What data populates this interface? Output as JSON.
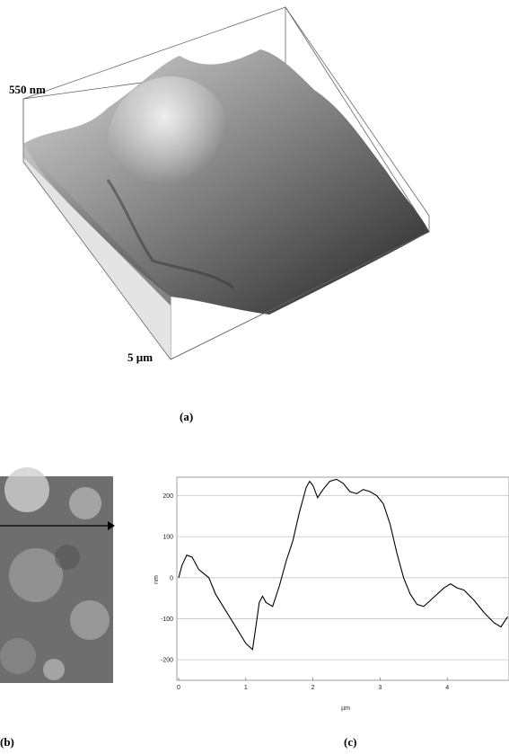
{
  "figure": {
    "height_label": "550 nm",
    "size_label": "5 µm",
    "panel_a": "(a)",
    "panel_b": "(b)",
    "panel_c": "(c)"
  },
  "chart_data": {
    "type": "line",
    "xlabel": "µm",
    "ylabel": "nm",
    "x": [
      0,
      0.05,
      0.12,
      0.2,
      0.3,
      0.45,
      0.55,
      0.7,
      0.85,
      1.0,
      1.1,
      1.15,
      1.2,
      1.25,
      1.3,
      1.4,
      1.5,
      1.6,
      1.7,
      1.8,
      1.9,
      1.95,
      2.0,
      2.07,
      2.15,
      2.25,
      2.35,
      2.45,
      2.55,
      2.65,
      2.75,
      2.85,
      2.95,
      3.05,
      3.15,
      3.25,
      3.35,
      3.45,
      3.55,
      3.65,
      3.75,
      3.85,
      3.95,
      4.05,
      4.15,
      4.25,
      4.4,
      4.55,
      4.7,
      4.8,
      4.9
    ],
    "series": [
      {
        "color": "#000000",
        "values": [
          0,
          30,
          55,
          50,
          20,
          0,
          -40,
          -80,
          -120,
          -160,
          -175,
          -120,
          -60,
          -45,
          -60,
          -70,
          -20,
          40,
          90,
          160,
          220,
          235,
          225,
          195,
          215,
          235,
          240,
          230,
          210,
          205,
          215,
          210,
          200,
          180,
          130,
          60,
          0,
          -40,
          -65,
          -70,
          -55,
          -40,
          -25,
          -15,
          -25,
          -30,
          -55,
          -85,
          -110,
          -120,
          -95
        ]
      }
    ],
    "xlim": [
      0,
      4.92
    ],
    "ylim": [
      -250,
      245
    ],
    "xticks": [
      0,
      1,
      2,
      3,
      4
    ],
    "yticks": [
      -200,
      -100,
      0,
      100,
      200
    ],
    "grid": true
  }
}
